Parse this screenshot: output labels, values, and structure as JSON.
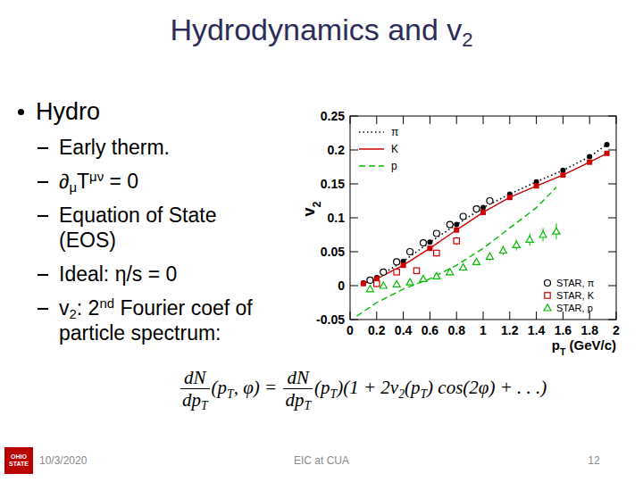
{
  "slide": {
    "title": [
      "Hydrodynamics and v",
      {
        "sub": "2"
      }
    ],
    "bullets": [
      {
        "lines": [
          [
            "Hydro"
          ]
        ],
        "items": [
          {
            "lines": [
              [
                "Early therm."
              ]
            ]
          },
          {
            "lines": [
              [
                "∂",
                {
                  "sub": "μ"
                },
                "T",
                {
                  "sup": "μν"
                },
                " = 0"
              ]
            ]
          },
          {
            "lines": [
              [
                "Equation of State"
              ],
              [
                "(EOS)"
              ]
            ]
          },
          {
            "lines": [
              [
                "Ideal: η/s = 0"
              ]
            ]
          },
          {
            "lines": [
              [
                "v",
                {
                  "sub": "2"
                },
                ": 2",
                {
                  "sup": "nd"
                },
                " Fourier coef of"
              ],
              [
                "particle spectrum:"
              ]
            ]
          }
        ]
      }
    ],
    "formula": [
      {
        "frac": [
          [
            "dN"
          ],
          [
            "dp",
            {
              "sub": "T"
            }
          ]
        ]
      },
      "(p",
      {
        "sub": "T"
      },
      ", φ) = ",
      {
        "frac": [
          [
            "dN"
          ],
          [
            "dp",
            {
              "sub": "T"
            }
          ]
        ]
      },
      "(p",
      {
        "sub": "T"
      },
      ")(1 + 2v",
      {
        "sub": "2"
      },
      "(p",
      {
        "sub": "T"
      },
      ") cos(2φ) + . . .)"
    ],
    "footer": {
      "logo": "OHIO STATE",
      "date": "10/3/2020",
      "event": "EIC at CUA",
      "page": "12"
    }
  },
  "chart_data": {
    "type": "line",
    "x_label": [
      "p",
      {
        "sub": "T"
      },
      " (GeV/c)"
    ],
    "y_label": [
      "v",
      {
        "sub": "2"
      }
    ],
    "xlim": [
      0,
      2
    ],
    "ylim": [
      -0.05,
      0.25
    ],
    "xticks": [
      0,
      0.2,
      0.4,
      0.6,
      0.8,
      1,
      1.2,
      1.4,
      1.6,
      1.8,
      2
    ],
    "yticks": [
      -0.05,
      0,
      0.05,
      0.1,
      0.15,
      0.2,
      0.25
    ],
    "grid": false,
    "legend": "top-left",
    "series": [
      {
        "name": "π",
        "type": "line",
        "color": "#000000",
        "line_style": "dotted",
        "marker": "filled-circle",
        "x": [
          0.1,
          0.2,
          0.4,
          0.6,
          0.8,
          1.0,
          1.2,
          1.4,
          1.6,
          1.8,
          1.93
        ],
        "values": [
          0.004,
          0.012,
          0.036,
          0.064,
          0.09,
          0.115,
          0.135,
          0.153,
          0.17,
          0.19,
          0.208
        ]
      },
      {
        "name": "K",
        "type": "line",
        "color": "#cc0000",
        "line_style": "solid",
        "marker": "filled-square",
        "x": [
          0.1,
          0.2,
          0.4,
          0.6,
          0.8,
          1.0,
          1.2,
          1.4,
          1.6,
          1.8,
          1.93
        ],
        "values": [
          0.003,
          0.01,
          0.03,
          0.055,
          0.082,
          0.108,
          0.13,
          0.147,
          0.163,
          0.182,
          0.195
        ]
      },
      {
        "name": "p",
        "type": "line",
        "color": "#00bb00",
        "line_style": "dashed",
        "marker": "none",
        "x": [
          0.05,
          0.2,
          0.4,
          0.6,
          0.8,
          1.0,
          1.2,
          1.4,
          1.55
        ],
        "values": [
          -0.045,
          -0.025,
          -0.005,
          0.01,
          0.03,
          0.055,
          0.085,
          0.115,
          0.145
        ]
      },
      {
        "name": "STAR, π",
        "type": "scatter",
        "color": "#000000",
        "marker": "open-circle",
        "x": [
          0.15,
          0.25,
          0.35,
          0.45,
          0.55,
          0.65,
          0.75,
          0.85,
          0.95,
          1.05
        ],
        "values": [
          0.008,
          0.02,
          0.035,
          0.05,
          0.063,
          0.077,
          0.09,
          0.102,
          0.113,
          0.125
        ]
      },
      {
        "name": "STAR, K",
        "type": "scatter",
        "color": "#cc0000",
        "marker": "open-square",
        "x": [
          0.2,
          0.35,
          0.5,
          0.65,
          0.8
        ],
        "values": [
          0.003,
          0.02,
          0.022,
          0.048,
          0.066
        ],
        "errors": [
          0.005,
          0.004,
          0.004,
          0.005,
          0.006
        ]
      },
      {
        "name": "STAR, p",
        "type": "scatter",
        "color": "#00bb00",
        "marker": "open-triangle",
        "x": [
          0.15,
          0.25,
          0.35,
          0.45,
          0.55,
          0.65,
          0.75,
          0.85,
          0.95,
          1.05,
          1.15,
          1.25,
          1.35,
          1.45,
          1.55
        ],
        "values": [
          -0.005,
          0.0,
          0.002,
          0.005,
          0.01,
          0.014,
          0.02,
          0.027,
          0.035,
          0.043,
          0.052,
          0.06,
          0.068,
          0.075,
          0.08
        ],
        "errors": [
          0.004,
          0.003,
          0.003,
          0.003,
          0.003,
          0.004,
          0.004,
          0.005,
          0.005,
          0.006,
          0.007,
          0.008,
          0.009,
          0.01,
          0.012
        ]
      }
    ]
  }
}
